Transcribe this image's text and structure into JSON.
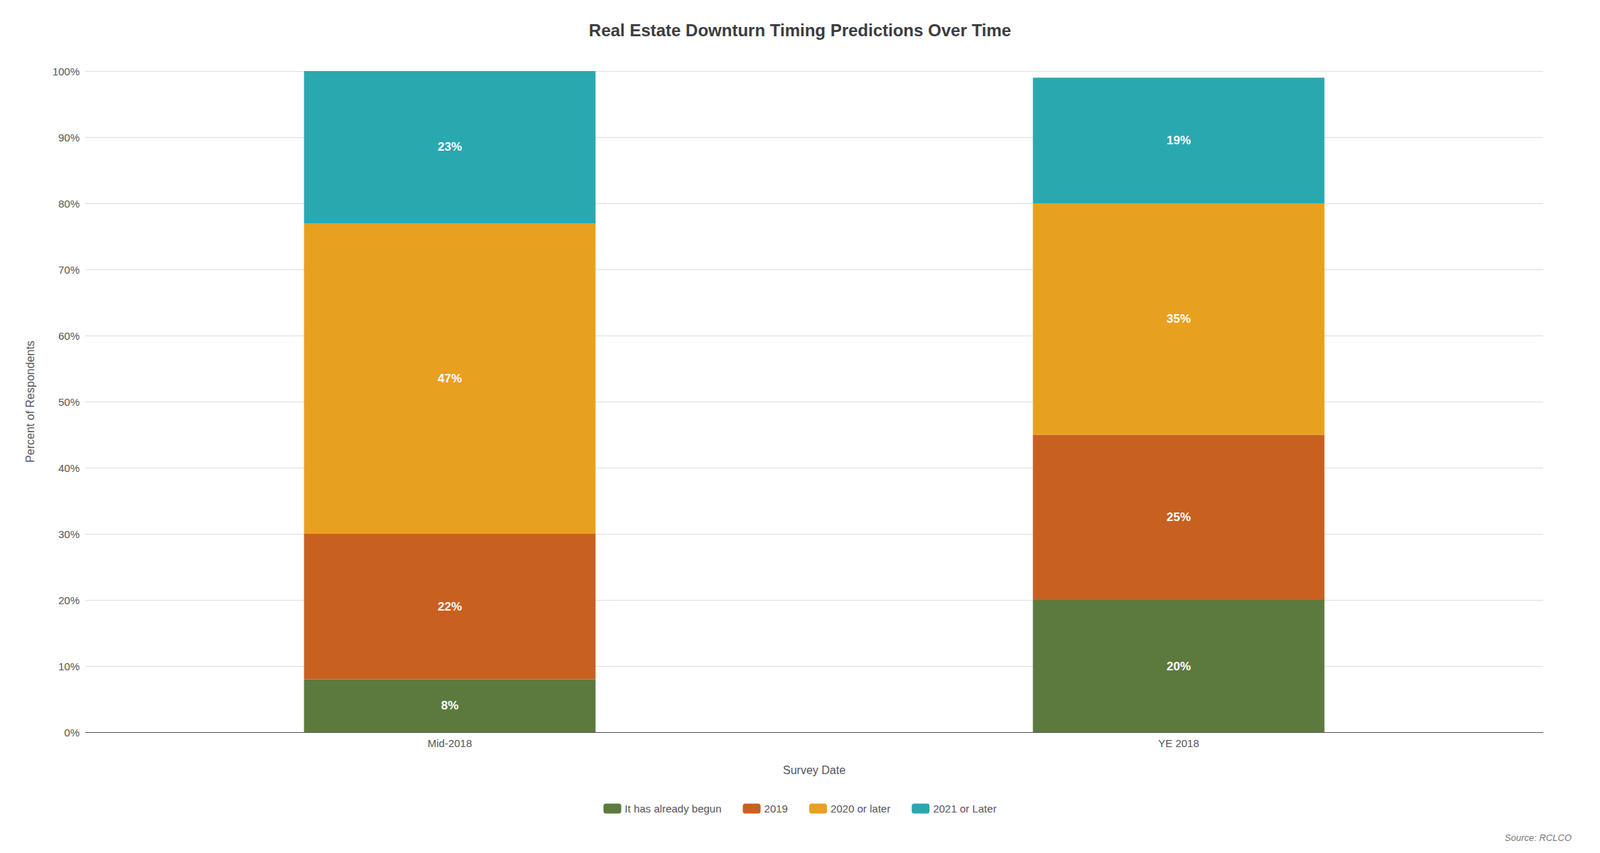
{
  "chart_data": {
    "type": "bar",
    "title": "Real Estate Downturn Timing Predictions Over Time",
    "xlabel": "Survey Date",
    "ylabel": "Percent of Respondents",
    "categories": [
      "Mid-2018",
      "YE 2018"
    ],
    "series": [
      {
        "name": "It has already begun",
        "color": "#5c7a3e",
        "values": [
          8,
          20
        ],
        "value_labels": [
          "8%",
          "20%"
        ]
      },
      {
        "name": "2019",
        "color": "#c86020",
        "values": [
          22,
          25
        ],
        "value_labels": [
          "22%",
          "25%"
        ]
      },
      {
        "name": "2020 or later",
        "color": "#e8a020",
        "values": [
          47,
          35
        ],
        "value_labels": [
          "47%",
          "35%"
        ]
      },
      {
        "name": "2021 or Later",
        "color": "#2aa8b0",
        "values": [
          23,
          19
        ],
        "value_labels": [
          "23%",
          "19%"
        ]
      }
    ],
    "stacked": true,
    "data_labels": true,
    "ylim": [
      0,
      100
    ],
    "yticks": [
      {
        "value": 0,
        "label": "0%"
      },
      {
        "value": 10,
        "label": "10%"
      },
      {
        "value": 20,
        "label": "20%"
      },
      {
        "value": 30,
        "label": "30%"
      },
      {
        "value": 40,
        "label": "40%"
      },
      {
        "value": 50,
        "label": "50%"
      },
      {
        "value": 60,
        "label": "60%"
      },
      {
        "value": 70,
        "label": "70%"
      },
      {
        "value": 80,
        "label": "80%"
      },
      {
        "value": 90,
        "label": "90%"
      },
      {
        "value": 100,
        "label": "100%"
      }
    ],
    "grid": true,
    "legend": "bottom",
    "annotations": [
      "Source: RCLCO"
    ]
  }
}
